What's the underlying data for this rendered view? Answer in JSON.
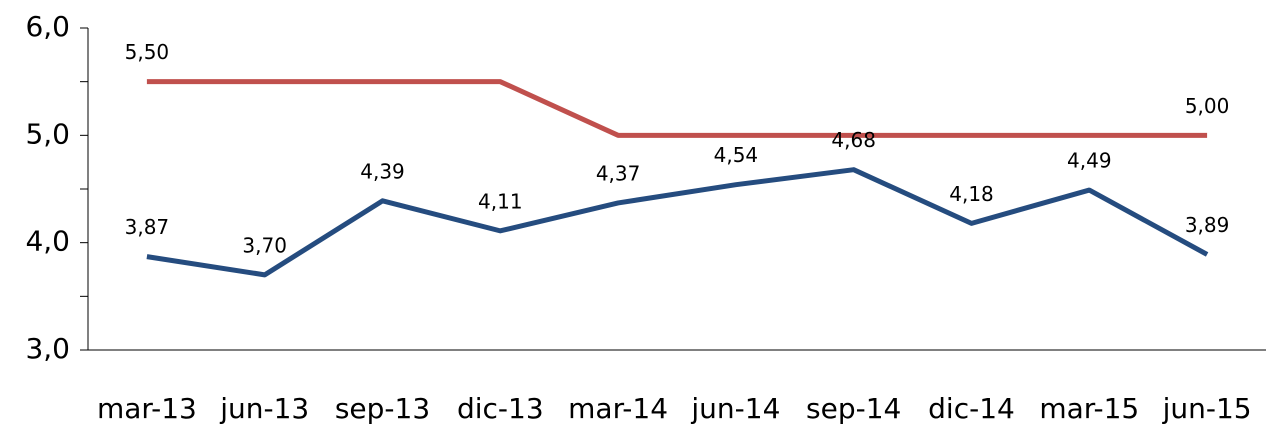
{
  "chart_data": {
    "type": "line",
    "categories": [
      "mar-13",
      "jun-13",
      "sep-13",
      "dic-13",
      "mar-14",
      "jun-14",
      "sep-14",
      "dic-14",
      "mar-15",
      "jun-15"
    ],
    "series": [
      {
        "color": "#c0504d",
        "values": [
          5.5,
          5.5,
          5.5,
          5.5,
          5.0,
          5.0,
          5.0,
          5.0,
          5.0,
          5.0
        ],
        "value_labels": [
          "5,50",
          null,
          null,
          null,
          null,
          null,
          null,
          null,
          null,
          "5,00"
        ]
      },
      {
        "color": "#254c7f",
        "values": [
          3.87,
          3.7,
          4.39,
          4.11,
          4.37,
          4.54,
          4.68,
          4.18,
          4.49,
          3.89
        ],
        "value_labels": [
          "3,87",
          "3,70",
          "4,39",
          "4,11",
          "4,37",
          "4,54",
          "4,68",
          "4,18",
          "4,49",
          "3,89"
        ]
      }
    ],
    "ylim": [
      3,
      6
    ],
    "yticks": [
      {
        "value": 3,
        "label": "3,0"
      },
      {
        "value": 4,
        "label": "4,0"
      },
      {
        "value": 5,
        "label": "5,0"
      },
      {
        "value": 6,
        "label": "6,0"
      }
    ],
    "yminorticks": [
      3.5,
      4.5,
      5.5
    ],
    "grid": false
  }
}
